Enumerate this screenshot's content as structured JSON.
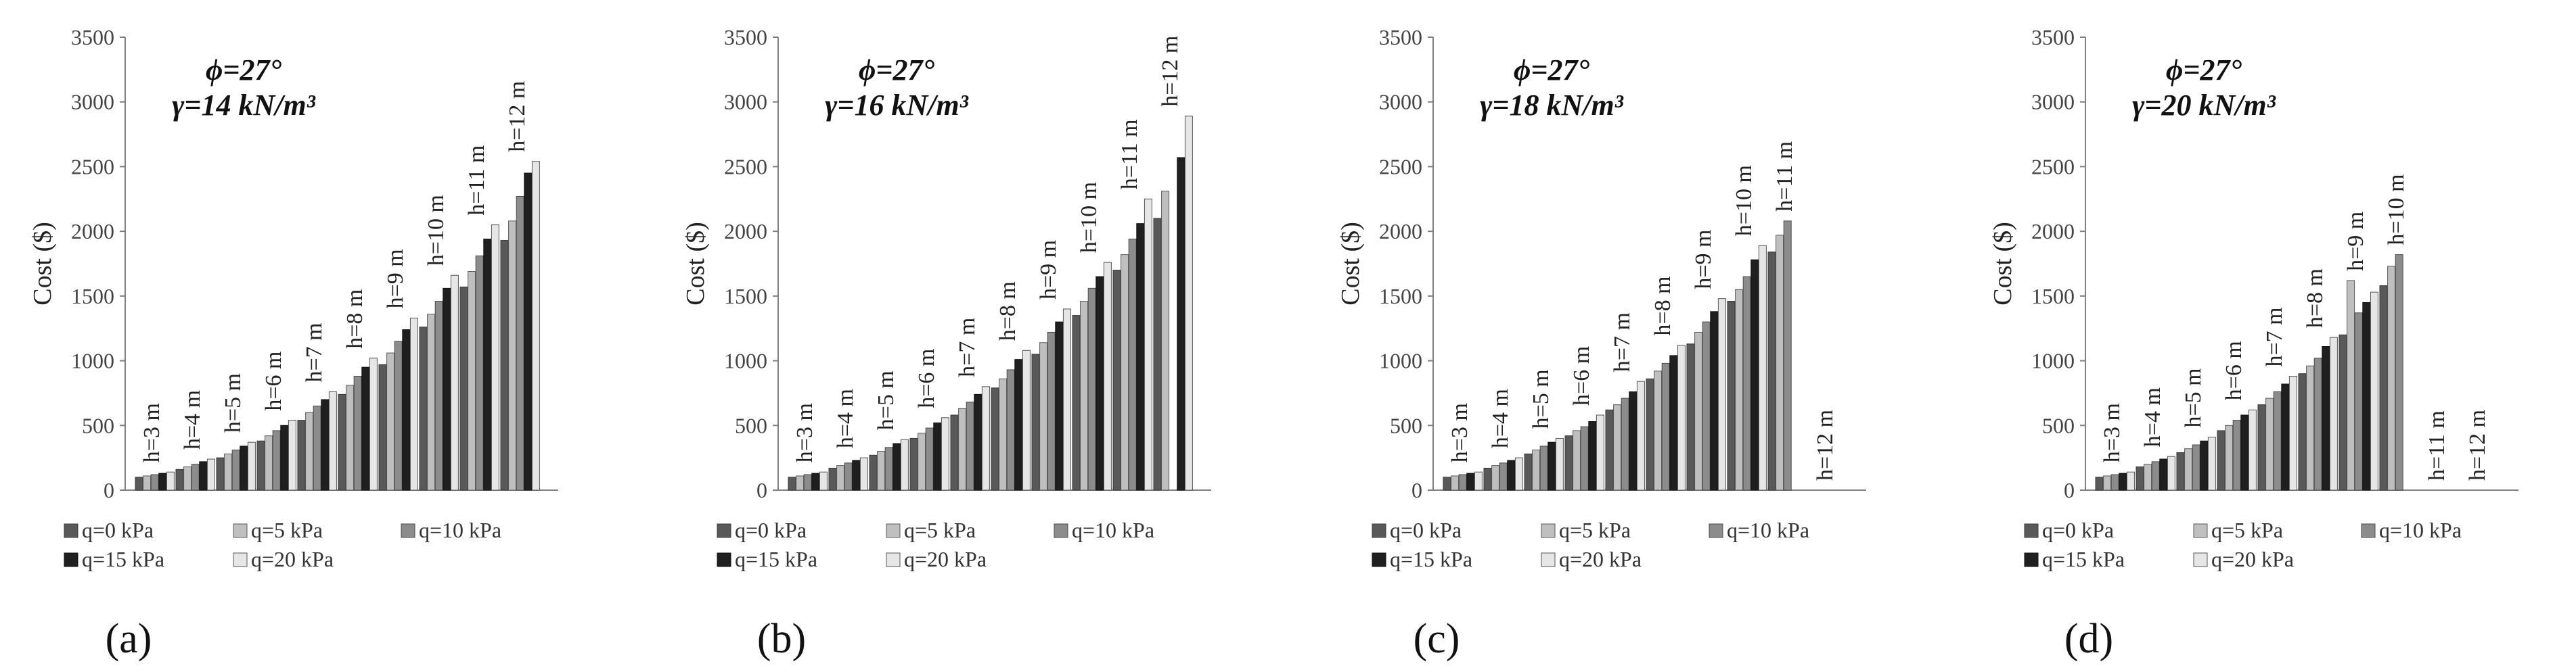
{
  "series_style": {
    "q=0 kPa": {
      "fill": "#595959",
      "stroke": "#3a3a3a"
    },
    "q=5 kPa": {
      "fill": "#bfbfbf",
      "stroke": "#5a5a5a"
    },
    "q=10 kPa": {
      "fill": "#8c8c8c",
      "stroke": "#4a4a4a"
    },
    "q=15 kPa": {
      "fill": "#1f1f1f",
      "stroke": "#111111"
    },
    "q=20 kPa": {
      "fill": "#e6e6e6",
      "stroke": "#555555"
    }
  },
  "chart_data": [
    {
      "type": "bar",
      "panel_label": "(a)",
      "phi_label": "ϕ=27°",
      "gamma_label": "γ=14 kN/m³",
      "ylabel": "Cost ($)",
      "ylim": [
        0,
        3500
      ],
      "yticks": [
        0,
        500,
        1000,
        1500,
        2000,
        2500,
        3000,
        3500
      ],
      "categories": [
        "h=3 m",
        "h=4 m",
        "h=5 m",
        "h=6 m",
        "h=7 m",
        "h=8 m",
        "h=9 m",
        "h=10 m",
        "h=11 m",
        "h=12 m"
      ],
      "series": [
        {
          "name": "q=0 kPa",
          "values": [
            100,
            160,
            250,
            380,
            540,
            740,
            970,
            1260,
            1570,
            1930
          ]
        },
        {
          "name": "q=5 kPa",
          "values": [
            110,
            180,
            280,
            420,
            600,
            810,
            1060,
            1360,
            1690,
            2080
          ]
        },
        {
          "name": "q=10 kPa",
          "values": [
            120,
            200,
            310,
            460,
            650,
            880,
            1150,
            1460,
            1810,
            2270
          ]
        },
        {
          "name": "q=15 kPa",
          "values": [
            130,
            220,
            340,
            500,
            700,
            950,
            1240,
            1560,
            1940,
            2450
          ]
        },
        {
          "name": "q=20 kPa",
          "values": [
            140,
            240,
            370,
            540,
            760,
            1020,
            1330,
            1660,
            2050,
            2540
          ]
        }
      ]
    },
    {
      "type": "bar",
      "panel_label": "(b)",
      "phi_label": "ϕ=27°",
      "gamma_label": "γ=16 kN/m³",
      "ylabel": "Cost ($)",
      "ylim": [
        0,
        3500
      ],
      "yticks": [
        0,
        500,
        1000,
        1500,
        2000,
        2500,
        3000,
        3500
      ],
      "categories": [
        "h=3 m",
        "h=4 m",
        "h=5 m",
        "h=6 m",
        "h=7 m",
        "h=8 m",
        "h=9 m",
        "h=10 m",
        "h=11 m",
        "h=12 m"
      ],
      "series": [
        {
          "name": "q=0 kPa",
          "values": [
            100,
            170,
            270,
            400,
            580,
            790,
            1050,
            1350,
            1700,
            2100
          ]
        },
        {
          "name": "q=5 kPa",
          "values": [
            110,
            190,
            300,
            440,
            630,
            860,
            1140,
            1460,
            1820,
            2310
          ]
        },
        {
          "name": "q=10 kPa",
          "values": [
            120,
            210,
            330,
            480,
            680,
            930,
            1220,
            1560,
            1940,
            0
          ]
        },
        {
          "name": "q=15 kPa",
          "values": [
            130,
            230,
            360,
            520,
            740,
            1010,
            1300,
            1650,
            2060,
            2570
          ]
        },
        {
          "name": "q=20 kPa",
          "values": [
            140,
            250,
            390,
            560,
            800,
            1080,
            1400,
            1760,
            2250,
            2890
          ]
        }
      ]
    },
    {
      "type": "bar",
      "panel_label": "(c)",
      "phi_label": "ϕ=27°",
      "gamma_label": "γ=18 kN/m³",
      "ylabel": "Cost ($)",
      "ylim": [
        0,
        3500
      ],
      "yticks": [
        0,
        500,
        1000,
        1500,
        2000,
        2500,
        3000,
        3500
      ],
      "categories": [
        "h=3 m",
        "h=4 m",
        "h=5 m",
        "h=6 m",
        "h=7 m",
        "h=8 m",
        "h=9 m",
        "h=10 m",
        "h=11 m",
        "h=12 m"
      ],
      "series": [
        {
          "name": "q=0 kPa",
          "values": [
            100,
            170,
            280,
            420,
            620,
            860,
            1130,
            1460,
            1840,
            0
          ]
        },
        {
          "name": "q=5 kPa",
          "values": [
            110,
            190,
            310,
            460,
            660,
            920,
            1220,
            1550,
            1970,
            0
          ]
        },
        {
          "name": "q=10 kPa",
          "values": [
            120,
            210,
            340,
            490,
            710,
            980,
            1300,
            1650,
            2080,
            0
          ]
        },
        {
          "name": "q=15 kPa",
          "values": [
            130,
            230,
            370,
            530,
            760,
            1040,
            1380,
            1780,
            0,
            0
          ]
        },
        {
          "name": "q=20 kPa",
          "values": [
            140,
            250,
            400,
            580,
            840,
            1120,
            1480,
            1890,
            0,
            0
          ]
        }
      ]
    },
    {
      "type": "bar",
      "panel_label": "(d)",
      "phi_label": "ϕ=27°",
      "gamma_label": "γ=20 kN/m³",
      "ylabel": "Cost ($)",
      "ylim": [
        0,
        3500
      ],
      "yticks": [
        0,
        500,
        1000,
        1500,
        2000,
        2500,
        3000,
        3500
      ],
      "categories": [
        "h=3 m",
        "h=4 m",
        "h=5 m",
        "h=6 m",
        "h=7 m",
        "h=8 m",
        "h=9 m",
        "h=10 m",
        "h=11 m",
        "h=12 m"
      ],
      "series": [
        {
          "name": "q=0 kPa",
          "values": [
            100,
            180,
            290,
            460,
            660,
            900,
            1200,
            1580,
            0,
            0
          ]
        },
        {
          "name": "q=5 kPa",
          "values": [
            110,
            200,
            320,
            500,
            710,
            960,
            1620,
            1730,
            0,
            0
          ]
        },
        {
          "name": "q=10 kPa",
          "values": [
            120,
            220,
            350,
            540,
            760,
            1020,
            1370,
            1820,
            0,
            0
          ]
        },
        {
          "name": "q=15 kPa",
          "values": [
            130,
            240,
            380,
            580,
            820,
            1110,
            1450,
            0,
            0,
            0
          ]
        },
        {
          "name": "q=20 kPa",
          "values": [
            140,
            260,
            410,
            620,
            880,
            1180,
            1530,
            0,
            0,
            0
          ]
        }
      ]
    }
  ]
}
